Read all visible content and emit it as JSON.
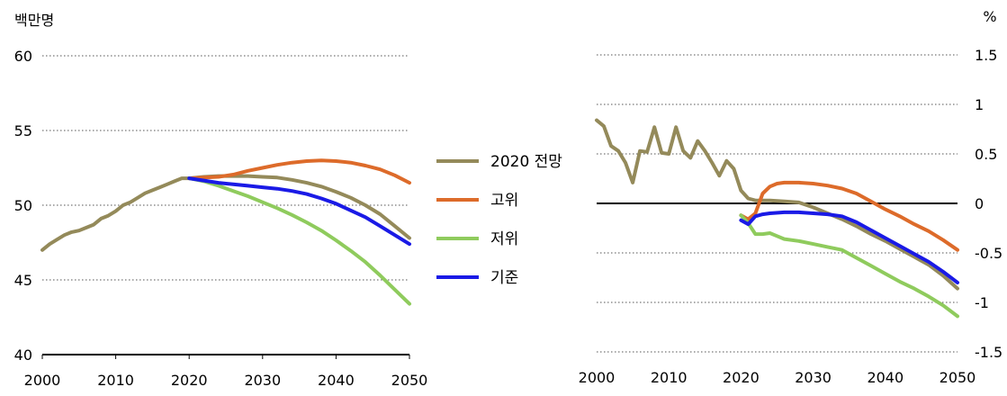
{
  "colors": {
    "forecast2020": "#948a5a",
    "high": "#dd6b2a",
    "low": "#8fcb5d",
    "base": "#1a1ae6",
    "grid": "#555555",
    "axis": "#000000"
  },
  "legend": [
    {
      "key": "forecast2020",
      "label": "2020 전망"
    },
    {
      "key": "high",
      "label": "고위"
    },
    {
      "key": "low",
      "label": "저위"
    },
    {
      "key": "base",
      "label": "기준"
    }
  ],
  "chart_data": [
    {
      "type": "line",
      "ylabel": "백만명",
      "ylim": [
        40,
        60
      ],
      "yticks": [
        "60",
        "55",
        "50",
        "45",
        "40"
      ],
      "ytick_values": [
        60,
        55,
        50,
        45,
        40
      ],
      "xlim": [
        2000,
        2050
      ],
      "xticks": [
        "2000",
        "2010",
        "2020",
        "2030",
        "2040",
        "2050"
      ],
      "xtick_values": [
        2000,
        2010,
        2020,
        2030,
        2040,
        2050
      ],
      "grid": "horizontal-dotted",
      "series": [
        {
          "key": "forecast2020",
          "name": "2020 전망",
          "x": [
            2000,
            2001,
            2002,
            2003,
            2004,
            2005,
            2006,
            2007,
            2008,
            2009,
            2010,
            2011,
            2012,
            2013,
            2014,
            2015,
            2016,
            2017,
            2018,
            2019,
            2020,
            2022,
            2024,
            2026,
            2028,
            2030,
            2032,
            2034,
            2036,
            2038,
            2040,
            2042,
            2044,
            2046,
            2048,
            2050
          ],
          "y": [
            47.0,
            47.4,
            47.7,
            48.0,
            48.2,
            48.3,
            48.5,
            48.7,
            49.1,
            49.3,
            49.6,
            50.0,
            50.2,
            50.5,
            50.8,
            51.0,
            51.2,
            51.4,
            51.6,
            51.8,
            51.8,
            51.9,
            51.95,
            51.95,
            51.95,
            51.9,
            51.85,
            51.7,
            51.5,
            51.25,
            50.9,
            50.5,
            50.0,
            49.4,
            48.6,
            47.8
          ]
        },
        {
          "key": "high",
          "name": "고위",
          "x": [
            2020,
            2022,
            2024,
            2026,
            2028,
            2030,
            2032,
            2034,
            2036,
            2038,
            2040,
            2042,
            2044,
            2046,
            2048,
            2050
          ],
          "y": [
            51.8,
            51.85,
            51.9,
            52.05,
            52.3,
            52.5,
            52.7,
            52.85,
            52.95,
            53.0,
            52.95,
            52.85,
            52.65,
            52.4,
            52.0,
            51.5
          ]
        },
        {
          "key": "low",
          "name": "저위",
          "x": [
            2020,
            2022,
            2024,
            2026,
            2028,
            2030,
            2032,
            2034,
            2036,
            2038,
            2040,
            2042,
            2044,
            2046,
            2048,
            2050
          ],
          "y": [
            51.8,
            51.6,
            51.3,
            50.95,
            50.6,
            50.2,
            49.8,
            49.35,
            48.85,
            48.3,
            47.65,
            46.95,
            46.2,
            45.3,
            44.35,
            43.4
          ]
        },
        {
          "key": "base",
          "name": "기준",
          "x": [
            2020,
            2022,
            2024,
            2026,
            2028,
            2030,
            2032,
            2034,
            2036,
            2038,
            2040,
            2042,
            2044,
            2046,
            2048,
            2050
          ],
          "y": [
            51.8,
            51.65,
            51.5,
            51.4,
            51.3,
            51.2,
            51.1,
            50.95,
            50.75,
            50.45,
            50.1,
            49.65,
            49.2,
            48.6,
            48.0,
            47.4
          ]
        }
      ]
    },
    {
      "type": "line",
      "ylabel": "%",
      "ylim": [
        -1.5,
        1.5
      ],
      "yticks": [
        "1.5",
        "1",
        "0.5",
        "0",
        "-0.5",
        "-1",
        "-1.5"
      ],
      "ytick_values": [
        1.5,
        1,
        0.5,
        0,
        -0.5,
        -1,
        -1.5
      ],
      "xlim": [
        2000,
        2050
      ],
      "xticks": [
        "2000",
        "2010",
        "2020",
        "2030",
        "2040",
        "2050"
      ],
      "xtick_values": [
        2000,
        2010,
        2020,
        2030,
        2040,
        2050
      ],
      "grid": "horizontal-dotted",
      "series": [
        {
          "key": "forecast2020",
          "name": "2020 전망",
          "x": [
            2000,
            2001,
            2002,
            2003,
            2004,
            2005,
            2006,
            2007,
            2008,
            2009,
            2010,
            2011,
            2012,
            2013,
            2014,
            2015,
            2016,
            2017,
            2018,
            2019,
            2020,
            2021,
            2022,
            2023,
            2024,
            2026,
            2028,
            2030,
            2032,
            2034,
            2036,
            2038,
            2040,
            2042,
            2044,
            2046,
            2048,
            2050
          ],
          "y": [
            0.84,
            0.78,
            0.58,
            0.53,
            0.41,
            0.21,
            0.53,
            0.52,
            0.77,
            0.51,
            0.5,
            0.77,
            0.53,
            0.46,
            0.63,
            0.53,
            0.41,
            0.28,
            0.43,
            0.35,
            0.13,
            0.05,
            0.03,
            0.03,
            0.03,
            0.02,
            0.01,
            -0.04,
            -0.1,
            -0.16,
            -0.23,
            -0.31,
            -0.38,
            -0.46,
            -0.54,
            -0.62,
            -0.73,
            -0.86
          ]
        },
        {
          "key": "high",
          "name": "고위",
          "x": [
            2020,
            2021,
            2022,
            2023,
            2024,
            2025,
            2026,
            2028,
            2030,
            2032,
            2034,
            2036,
            2038,
            2040,
            2042,
            2044,
            2046,
            2048,
            2050
          ],
          "y": [
            -0.12,
            -0.16,
            -0.1,
            0.1,
            0.17,
            0.2,
            0.21,
            0.21,
            0.2,
            0.18,
            0.15,
            0.1,
            0.02,
            -0.06,
            -0.13,
            -0.21,
            -0.28,
            -0.37,
            -0.47
          ]
        },
        {
          "key": "low",
          "name": "저위",
          "x": [
            2020,
            2021,
            2022,
            2023,
            2024,
            2025,
            2026,
            2028,
            2030,
            2032,
            2034,
            2036,
            2038,
            2040,
            2042,
            2044,
            2046,
            2048,
            2050
          ],
          "y": [
            -0.12,
            -0.2,
            -0.31,
            -0.31,
            -0.3,
            -0.33,
            -0.36,
            -0.38,
            -0.41,
            -0.44,
            -0.47,
            -0.55,
            -0.63,
            -0.71,
            -0.79,
            -0.86,
            -0.94,
            -1.03,
            -1.14
          ]
        },
        {
          "key": "base",
          "name": "기준",
          "x": [
            2020,
            2021,
            2022,
            2023,
            2024,
            2026,
            2028,
            2030,
            2032,
            2034,
            2036,
            2038,
            2040,
            2042,
            2044,
            2046,
            2048,
            2050
          ],
          "y": [
            -0.17,
            -0.21,
            -0.13,
            -0.11,
            -0.1,
            -0.09,
            -0.09,
            -0.1,
            -0.11,
            -0.13,
            -0.19,
            -0.27,
            -0.35,
            -0.43,
            -0.51,
            -0.59,
            -0.69,
            -0.8
          ]
        }
      ]
    }
  ]
}
